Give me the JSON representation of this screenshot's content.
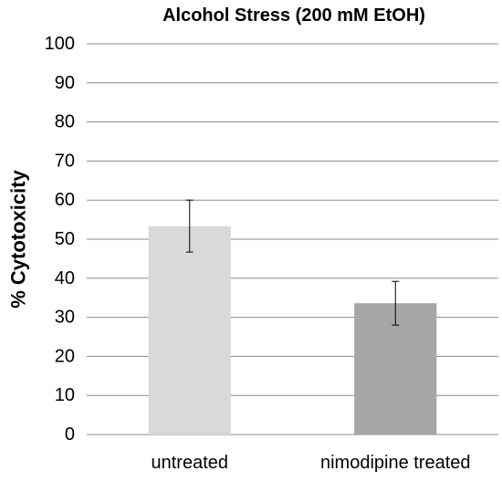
{
  "chart_data": {
    "type": "bar",
    "title": "Alcohol Stress (200 mM EtOH)",
    "xlabel": "",
    "ylabel": "% Cytotoxicity",
    "categories": [
      "untreated",
      "nimodipine treated"
    ],
    "values": [
      53.3,
      33.6
    ],
    "error_low": [
      46.7,
      28.0
    ],
    "error_high": [
      60.0,
      39.2
    ],
    "ylim": [
      0,
      100
    ],
    "yticks": [
      "0",
      "10",
      "20",
      "30",
      "40",
      "50",
      "60",
      "70",
      "80",
      "90",
      "100"
    ],
    "grid": true,
    "legend": "none",
    "colors": [
      "#d9d9d9",
      "#a6a6a6"
    ],
    "grid_color": "#8c8c8c"
  }
}
